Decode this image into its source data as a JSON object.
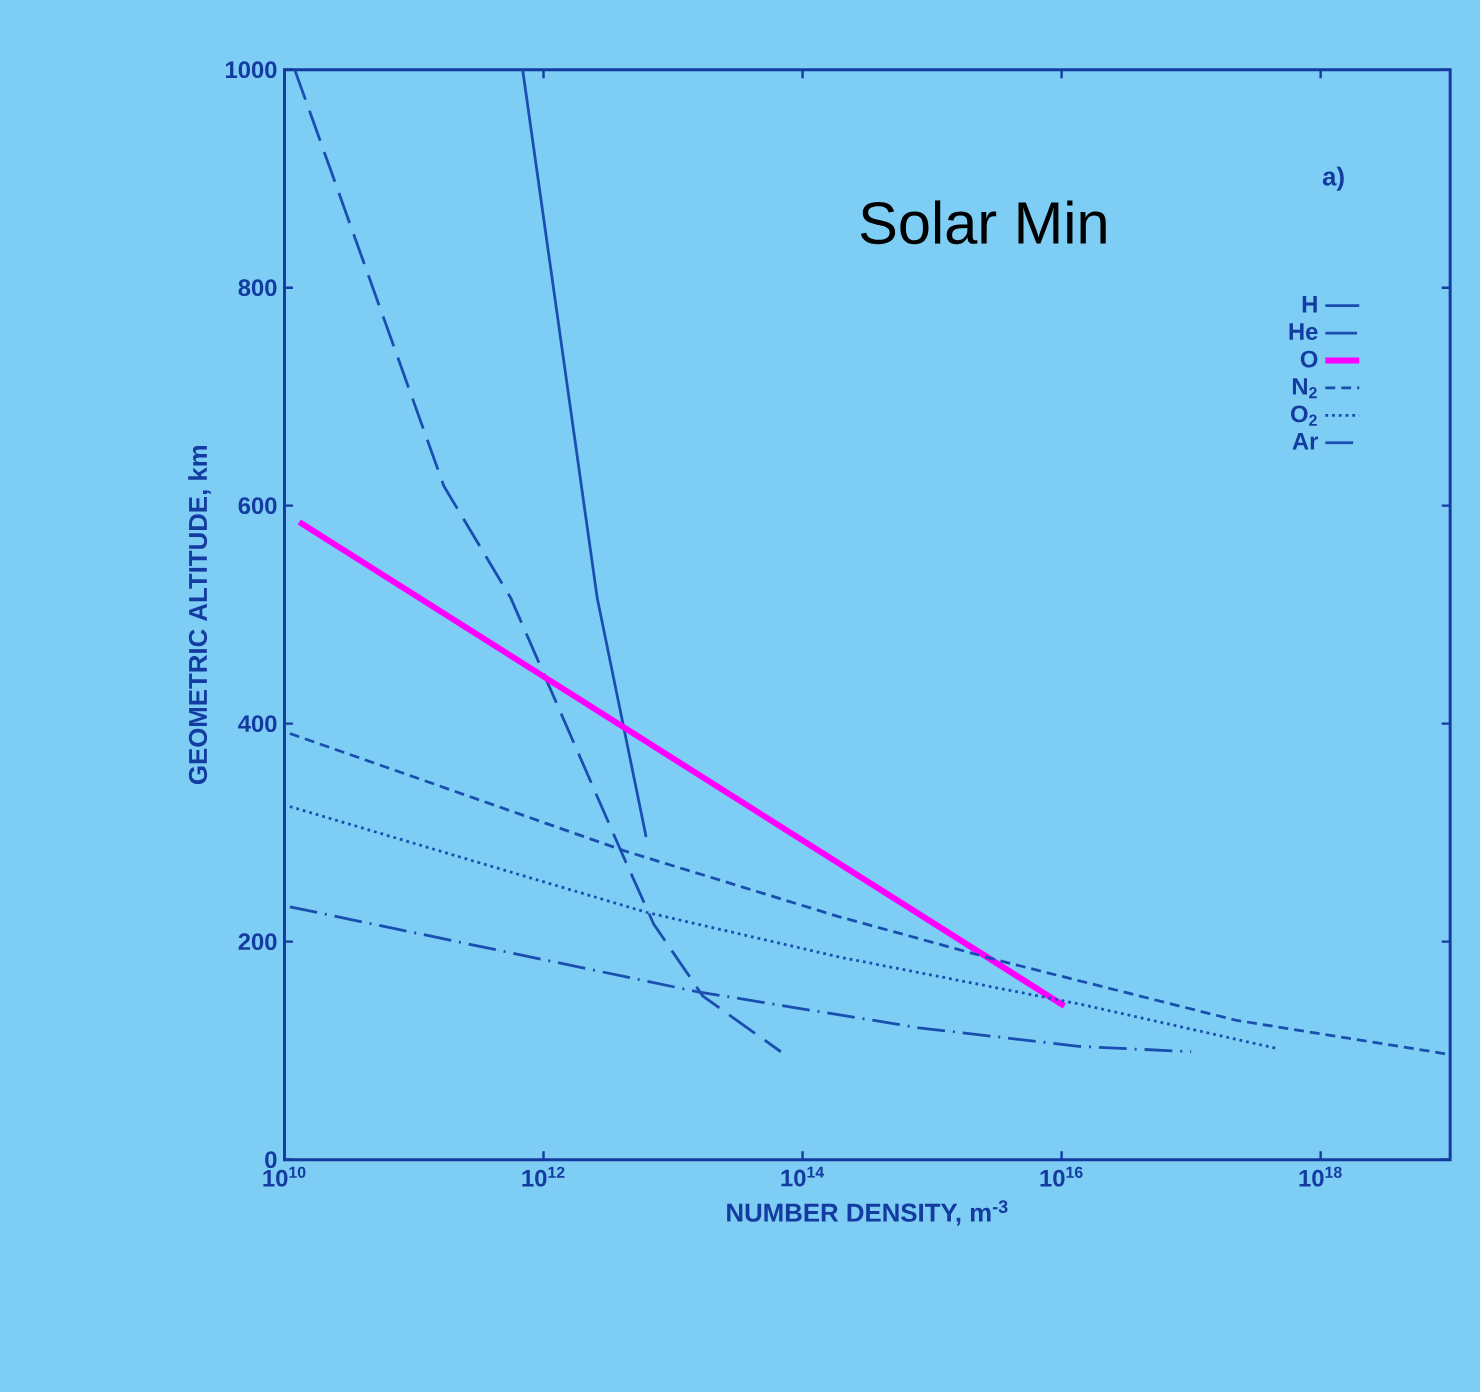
{
  "chart_data": {
    "type": "line",
    "log": "x",
    "xlabel": "NUMBER DENSITY, m$^{-3}$",
    "ylabel": "GEOMETRIC ALTITUDE, km",
    "annotations": [
      "a)",
      "Solar Min"
    ],
    "xlim": [
      10000000000.0,
      1e+19
    ],
    "ylim": [
      0,
      1000
    ],
    "xticks": [
      {
        "value": 10000000000.0,
        "label": "10$^{10}$"
      },
      {
        "value": 1000000000000.0,
        "label": "10$^{12}$"
      },
      {
        "value": 100000000000000.0,
        "label": "10$^{14}$"
      },
      {
        "value": 1e+16,
        "label": "10$^{16}$"
      },
      {
        "value": 1e+18,
        "label": "10$^{18}$"
      }
    ],
    "yticks": [
      0,
      200,
      400,
      600,
      800,
      1000
    ],
    "legend": "top right",
    "grid": false,
    "series": [
      {
        "name": "H",
        "color": "#1a4fb0",
        "line_style": "solid",
        "x": [
          690000000000.0,
          2600000000000.0,
          6200000000000.0
        ],
        "values": [
          1000,
          515,
          296
        ]
      },
      {
        "name": "He",
        "color": "#1a4fb0",
        "line_style": "longdashed",
        "x": [
          12000000000.0,
          170000000000.0,
          560000000000.0,
          4000000000000.0,
          7100000000000.0,
          17000000000000.0,
          68000000000000.0
        ],
        "values": [
          1000,
          618,
          515,
          282,
          216,
          150,
          99
        ]
      },
      {
        "name": "O",
        "color": "#ff00ff",
        "line_style": "solid",
        "x": [
          13000000000.0,
          1.05e+16
        ],
        "values": [
          585,
          141
        ]
      },
      {
        "name": "N$_{2}$",
        "color": "#1a4fb0",
        "line_style": "dashed",
        "x": [
          11000000000.0,
          4300000000000.0,
          190000000000000.0,
          3200000000000000.0,
          2.2e+17,
          9.3e+18
        ],
        "values": [
          391,
          283,
          223,
          183,
          128,
          97
        ]
      },
      {
        "name": "O$_{2}$",
        "color": "#1a4fb0",
        "line_style": "dotted",
        "x": [
          11000000000.0,
          6200000000000.0,
          190000000000000.0,
          1.35e+16,
          4.6e+17
        ],
        "values": [
          324,
          227,
          186,
          143,
          102
        ]
      },
      {
        "name": "Ar",
        "color": "#1a4fb0",
        "line_style": "dashdot",
        "x": [
          11000000000.0,
          15500000000000.0,
          790000000000000.0,
          1.35e+16,
          1e+17
        ],
        "values": [
          232,
          154,
          121,
          104,
          99
        ]
      }
    ]
  }
}
